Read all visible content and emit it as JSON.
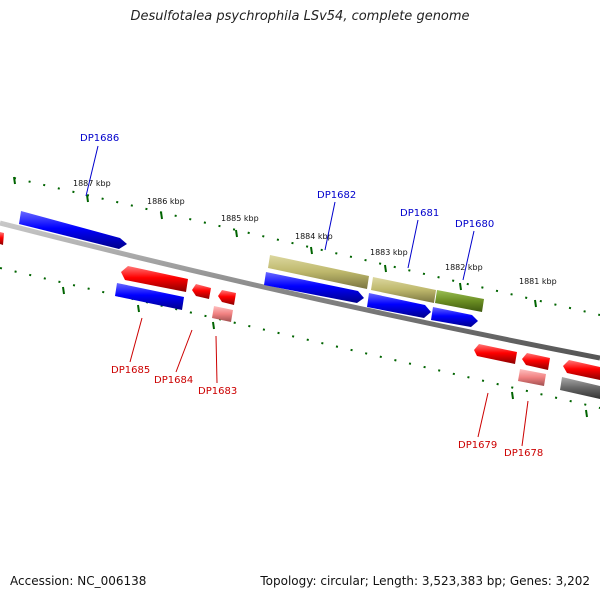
{
  "title": "Desulfotalea psychrophila LSv54, complete genome",
  "footer": {
    "accession": "Accession: NC_006138",
    "summary": "Topology: circular; Length: 3,523,383 bp; Genes: 3,202"
  },
  "scale_ticks": [
    "1887 kbp",
    "1886 kbp",
    "1885 kbp",
    "1884 kbp",
    "1883 kbp",
    "1882 kbp",
    "1881 kbp"
  ],
  "genes": [
    {
      "id": "DP1686",
      "strand": "forward",
      "color": "#0000cc"
    },
    {
      "id": "DP1682",
      "strand": "forward",
      "color": "#0000cc"
    },
    {
      "id": "DP1681",
      "strand": "forward",
      "color": "#0000cc"
    },
    {
      "id": "DP1680",
      "strand": "forward",
      "color": "#0000cc"
    },
    {
      "id": "DP1685",
      "strand": "reverse",
      "color": "#cc0000"
    },
    {
      "id": "DP1684",
      "strand": "reverse",
      "color": "#cc0000"
    },
    {
      "id": "DP1683",
      "strand": "reverse",
      "color": "#cc0000"
    },
    {
      "id": "DP1679",
      "strand": "reverse",
      "color": "#cc0000"
    },
    {
      "id": "DP1678",
      "strand": "reverse",
      "color": "#cc0000"
    }
  ],
  "colors": {
    "forward_gene": "#0000ff",
    "reverse_gene": "#ff0000",
    "reverse_gene_light": "#f08080",
    "olive_feature": "#bdb76b",
    "green_feature": "#6b8e23",
    "gray_feature": "#666666",
    "backbone": "#888888",
    "tick": "#006400"
  }
}
